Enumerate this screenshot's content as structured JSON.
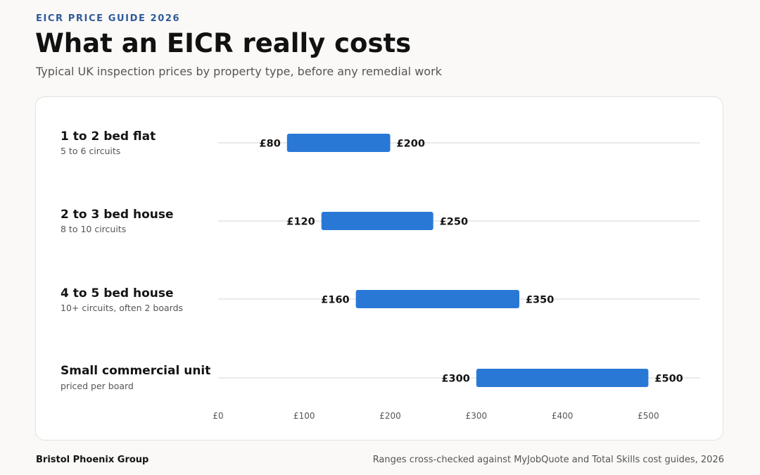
{
  "header": {
    "eyebrow": "EICR PRICE GUIDE 2026",
    "title": "What an EICR really costs",
    "subtitle": "Typical UK inspection prices by property type, before any remedial work"
  },
  "footer": {
    "brand": "Bristol Phoenix Group",
    "source": "Ranges cross-checked against MyJobQuote and Total Skills cost guides, 2026"
  },
  "colors": {
    "bar": "#2a78d6",
    "track": "#e6e4e0",
    "axis_text": "#555555",
    "value_text": "#141414"
  },
  "chart_data": {
    "type": "bar",
    "orientation": "horizontal",
    "style": "range",
    "categories": [
      {
        "label": "1 to 2 bed flat",
        "note": "5 to 6 circuits",
        "low": 80,
        "high": 200,
        "low_label": "£80",
        "high_label": "£200"
      },
      {
        "label": "2 to 3 bed house",
        "note": "8 to 10 circuits",
        "low": 120,
        "high": 250,
        "low_label": "£120",
        "high_label": "£250"
      },
      {
        "label": "4 to 5 bed house",
        "note": "10+ circuits, often 2 boards",
        "low": 160,
        "high": 350,
        "low_label": "£160",
        "high_label": "£350"
      },
      {
        "label": "Small commercial unit",
        "note": "priced per board",
        "low": 300,
        "high": 500,
        "low_label": "£300",
        "high_label": "£500"
      }
    ],
    "x_ticks": [
      {
        "value": 0,
        "label": "£0"
      },
      {
        "value": 100,
        "label": "£100"
      },
      {
        "value": 200,
        "label": "£200"
      },
      {
        "value": 300,
        "label": "£300"
      },
      {
        "value": 400,
        "label": "£400"
      },
      {
        "value": 500,
        "label": "£500"
      }
    ],
    "xlim": [
      0,
      560
    ],
    "grid": false
  }
}
